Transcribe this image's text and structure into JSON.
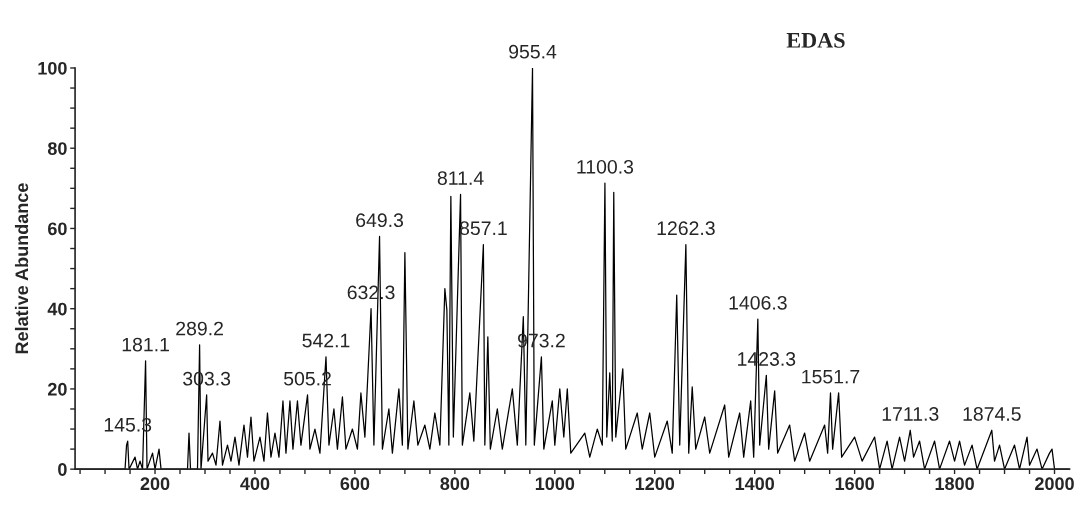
{
  "chart_data": {
    "type": "line",
    "title": "EDAS",
    "ylabel": "Relative Abundance",
    "series": [
      {
        "color": "#000000",
        "x": [
          40,
          140,
          143,
          145.3,
          148,
          160,
          165,
          170,
          175,
          181.1,
          184,
          195,
          200,
          208,
          212,
          265,
          268,
          271,
          285,
          289.2,
          292,
          303.3,
          306,
          315,
          322,
          330,
          335,
          345,
          352,
          360,
          368,
          378,
          385,
          392,
          398,
          410,
          418,
          425,
          432,
          440,
          448,
          456,
          462,
          470,
          476,
          485,
          492,
          505.2,
          510,
          520,
          530,
          542.1,
          548,
          558,
          565,
          575,
          582,
          595,
          605,
          612,
          620,
          632.3,
          638,
          649.3,
          655,
          668,
          675,
          688,
          695,
          700,
          706,
          718,
          726,
          740,
          750,
          760,
          770,
          780,
          784,
          788,
          792,
          797,
          811.4,
          815,
          830,
          838,
          857.1,
          860,
          866,
          871,
          885,
          895,
          915,
          925,
          937,
          942,
          955.4,
          959,
          973.2,
          978,
          995,
          1000,
          1010,
          1018,
          1025,
          1032,
          1060,
          1070,
          1085,
          1095,
          1100.3,
          1104,
          1110,
          1115,
          1118,
          1122,
          1136,
          1142,
          1165,
          1175,
          1190,
          1200,
          1225,
          1235,
          1244,
          1250,
          1262.3,
          1268,
          1275,
          1282,
          1300,
          1310,
          1340,
          1348,
          1370,
          1378,
          1392,
          1398,
          1406.3,
          1410,
          1423.3,
          1428,
          1440,
          1446,
          1470,
          1480,
          1500,
          1510,
          1540,
          1546,
          1551.7,
          1556,
          1568,
          1574,
          1600,
          1615,
          1640,
          1650,
          1665,
          1675,
          1690,
          1700,
          1711.3,
          1718,
          1730,
          1740,
          1760,
          1770,
          1790,
          1800,
          1810,
          1820,
          1835,
          1845,
          1874.5,
          1880,
          1890,
          1900,
          1920,
          1930,
          1945,
          1950,
          1965,
          1975,
          1990,
          1995,
          2000,
          2030
        ],
        "values": [
          0,
          0,
          6,
          7,
          0,
          3,
          0,
          2,
          0,
          27,
          0,
          4,
          0,
          5,
          0,
          0,
          9,
          0,
          0,
          31,
          0,
          18.5,
          2,
          4,
          1,
          12,
          1,
          6,
          2,
          8,
          1,
          11,
          3,
          13,
          2,
          8,
          2,
          14,
          3,
          9,
          3,
          17,
          4,
          17,
          5,
          17,
          6,
          18.5,
          5,
          10,
          4,
          28,
          6,
          15,
          5,
          18,
          5,
          10,
          5,
          19,
          8,
          40,
          6,
          58,
          5,
          15,
          4,
          20,
          6,
          54,
          5,
          17,
          6,
          11,
          5,
          14,
          6,
          45,
          39.7,
          6,
          68,
          8,
          68.5,
          6,
          19,
          7,
          56,
          6,
          33,
          5,
          15,
          5,
          20,
          6,
          38,
          6,
          100,
          6,
          28,
          5,
          17,
          6,
          20,
          8,
          20,
          4,
          9,
          3,
          10,
          6,
          71.3,
          8,
          24,
          7,
          69,
          8,
          25,
          5,
          14,
          5,
          14,
          3,
          12,
          4,
          43.4,
          6,
          56,
          4,
          20.5,
          5,
          13,
          4,
          16,
          3,
          14,
          3,
          17,
          3,
          37.4,
          6,
          23.4,
          5,
          19.5,
          4,
          11,
          2,
          9,
          2,
          11,
          4,
          19,
          5,
          19,
          3,
          8,
          2,
          8,
          0,
          7,
          0,
          8,
          2,
          9.7,
          3,
          7,
          0,
          7,
          0,
          7,
          2,
          7,
          1,
          6,
          0,
          9.7,
          2,
          6,
          0,
          6,
          0,
          8,
          1,
          5,
          0,
          4,
          5,
          0,
          0
        ]
      }
    ],
    "xlim": [
      40,
      2030
    ],
    "xticks": [
      {
        "value": 50,
        "label": null
      },
      {
        "value": 100,
        "label": null
      },
      {
        "value": 150,
        "label": null
      },
      200,
      {
        "value": 250,
        "label": null
      },
      {
        "value": 300,
        "label": null
      },
      {
        "value": 350,
        "label": null
      },
      400,
      {
        "value": 450,
        "label": null
      },
      {
        "value": 500,
        "label": null
      },
      {
        "value": 550,
        "label": null
      },
      600,
      {
        "value": 650,
        "label": null
      },
      {
        "value": 700,
        "label": null
      },
      {
        "value": 750,
        "label": null
      },
      800,
      {
        "value": 850,
        "label": null
      },
      {
        "value": 900,
        "label": null
      },
      {
        "value": 950,
        "label": null
      },
      1000,
      {
        "value": 1050,
        "label": null
      },
      {
        "value": 1100,
        "label": null
      },
      {
        "value": 1150,
        "label": null
      },
      1200,
      {
        "value": 1250,
        "label": null
      },
      {
        "value": 1300,
        "label": null
      },
      {
        "value": 1350,
        "label": null
      },
      1400,
      {
        "value": 1450,
        "label": null
      },
      {
        "value": 1500,
        "label": null
      },
      {
        "value": 1550,
        "label": null
      },
      1600,
      {
        "value": 1650,
        "label": null
      },
      {
        "value": 1700,
        "label": null
      },
      {
        "value": 1750,
        "label": null
      },
      1800,
      {
        "value": 1850,
        "label": null
      },
      {
        "value": 1900,
        "label": null
      },
      {
        "value": 1950,
        "label": null
      },
      2000
    ],
    "ylim": [
      0,
      100
    ],
    "yticks": [
      0,
      {
        "value": 5,
        "label": null
      },
      {
        "value": 10,
        "label": null
      },
      {
        "value": 15,
        "label": null
      },
      20,
      {
        "value": 25,
        "label": null
      },
      {
        "value": 30,
        "label": null
      },
      {
        "value": 35,
        "label": null
      },
      40,
      {
        "value": 45,
        "label": null
      },
      {
        "value": 50,
        "label": null
      },
      {
        "value": 55,
        "label": null
      },
      60,
      {
        "value": 65,
        "label": null
      },
      {
        "value": 70,
        "label": null
      },
      {
        "value": 75,
        "label": null
      },
      80,
      {
        "value": 85,
        "label": null
      },
      {
        "value": 90,
        "label": null
      },
      {
        "value": 95,
        "label": null
      },
      100
    ],
    "grid": false,
    "marker": "none",
    "line_style": "solid",
    "annotations": [
      {
        "text": "145.3",
        "x": 145.3,
        "y": 7
      },
      {
        "text": "181.1",
        "x": 181.1,
        "y": 27
      },
      {
        "text": "289.2",
        "x": 289.2,
        "y": 31
      },
      {
        "text": "303.3",
        "x": 303.3,
        "y": 18.5
      },
      {
        "text": "505.2",
        "x": 505.2,
        "y": 18.5
      },
      {
        "text": "542.1",
        "x": 542.1,
        "y": 28
      },
      {
        "text": "632.3",
        "x": 632.3,
        "y": 40
      },
      {
        "text": "649.3",
        "x": 649.3,
        "y": 58
      },
      {
        "text": "811.4",
        "x": 811.4,
        "y": 68.5
      },
      {
        "text": "857.1",
        "x": 857.1,
        "y": 56
      },
      {
        "text": "955.4",
        "x": 955.4,
        "y": 100
      },
      {
        "text": "973.2",
        "x": 973.2,
        "y": 28
      },
      {
        "text": "1100.3",
        "x": 1100.3,
        "y": 71.3
      },
      {
        "text": "1262.3",
        "x": 1262.3,
        "y": 56
      },
      {
        "text": "1406.3",
        "x": 1406.3,
        "y": 37.4
      },
      {
        "text": "1423.3",
        "x": 1423.3,
        "y": 23.4
      },
      {
        "text": "1551.7",
        "x": 1551.7,
        "y": 19
      },
      {
        "text": "1711.3",
        "x": 1711.3,
        "y": 9.7
      },
      {
        "text": "1874.5",
        "x": 1874.5,
        "y": 9.7
      }
    ]
  }
}
